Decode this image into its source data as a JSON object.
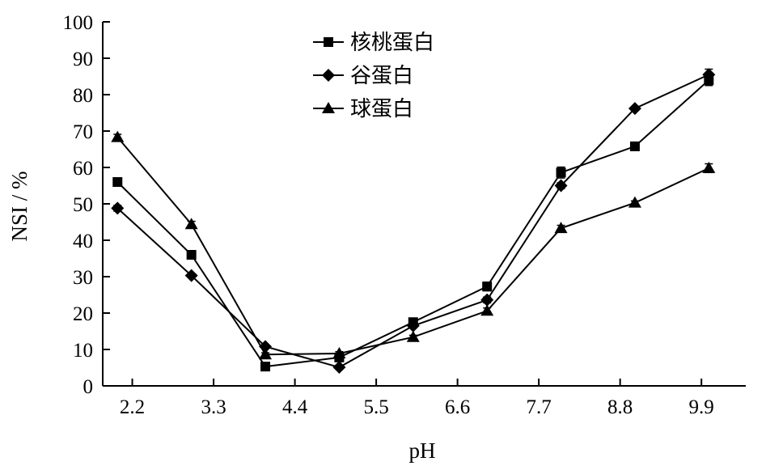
{
  "chart_data": {
    "type": "line",
    "xlabel": "pH",
    "ylabel": "NSI / %",
    "xlim": [
      1.8,
      10.5
    ],
    "ylim": [
      0,
      100
    ],
    "x_ticks": [
      2.2,
      3.3,
      4.4,
      5.5,
      6.6,
      7.7,
      8.8,
      9.9
    ],
    "x_tick_labels": [
      "2.2",
      "3.3",
      "4.4",
      "5.5",
      "6.6",
      "7.7",
      "8.8",
      "9.9"
    ],
    "y_ticks": [
      0,
      10,
      20,
      30,
      40,
      50,
      60,
      70,
      80,
      90,
      100
    ],
    "y_tick_labels": [
      "0",
      "10",
      "20",
      "30",
      "40",
      "50",
      "60",
      "70",
      "80",
      "90",
      "100"
    ],
    "grid": false,
    "legend": "top-center",
    "x": [
      2.0,
      3.0,
      4.0,
      5.0,
      6.0,
      7.0,
      8.0,
      9.0,
      10.0
    ],
    "series": [
      {
        "name": "核桃蛋白",
        "marker": "square",
        "values": [
          56,
          36,
          5.3,
          7.8,
          17.5,
          27.3,
          58.6,
          65.8,
          84
        ],
        "errors": [
          0.5,
          0.5,
          0.5,
          0.5,
          0.7,
          1.2,
          1.5,
          0.5,
          1.5
        ]
      },
      {
        "name": "谷蛋白",
        "marker": "diamond",
        "values": [
          48.8,
          30.3,
          10.8,
          5.1,
          16.5,
          23.6,
          55,
          76.2,
          85.5
        ],
        "errors": [
          0.8,
          0.5,
          0.5,
          0.5,
          0.5,
          0.8,
          0.8,
          0.5,
          1.5
        ]
      },
      {
        "name": "球蛋白",
        "marker": "triangle",
        "values": [
          68.3,
          44.4,
          8.6,
          8.9,
          13.4,
          20.6,
          43.3,
          50.3,
          59.8
        ],
        "errors": [
          0.8,
          0.8,
          0.5,
          0.5,
          0.5,
          0.8,
          0.8,
          0.5,
          1.2
        ]
      }
    ]
  }
}
